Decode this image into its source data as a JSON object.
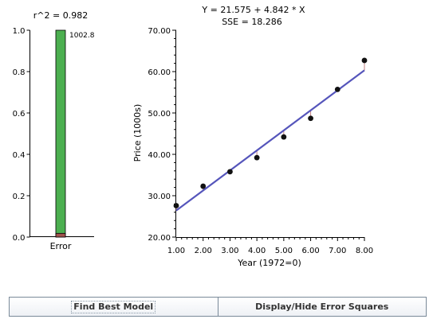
{
  "error_panel": {
    "r2_label": "r^2 = 0.982",
    "bar_label": "1002.8",
    "category_label": "Error",
    "y_ticks": [
      "0.0",
      "0.2",
      "0.4",
      "0.6",
      "0.8",
      "1.0"
    ],
    "fill_fraction": 1.0,
    "error_fraction": 0.018,
    "colors": {
      "fill": "#4caf50",
      "error": "#a0524d"
    }
  },
  "chart_data": {
    "type": "scatter",
    "equation": "Y = 21.575 + 4.842 * X",
    "sse": "SSE = 18.286",
    "xlabel": "Year (1972=0)",
    "ylabel": "Price (1000s)",
    "xlim": [
      1,
      8
    ],
    "ylim": [
      20,
      70
    ],
    "x_ticks": [
      "1.00",
      "2.00",
      "3.00",
      "4.00",
      "5.00",
      "6.00",
      "7.00",
      "8.00"
    ],
    "y_ticks": [
      "20.00",
      "30.00",
      "40.00",
      "50.00",
      "60.00",
      "70.00"
    ],
    "points": [
      {
        "x": 1,
        "y": 27.6
      },
      {
        "x": 2,
        "y": 32.3
      },
      {
        "x": 3,
        "y": 35.8
      },
      {
        "x": 4,
        "y": 39.2
      },
      {
        "x": 5,
        "y": 44.2
      },
      {
        "x": 6,
        "y": 48.7
      },
      {
        "x": 7,
        "y": 55.7
      },
      {
        "x": 8,
        "y": 62.7
      }
    ],
    "fit": {
      "intercept": 21.575,
      "slope": 4.842
    },
    "colors": {
      "line": "#5555bb",
      "points": "#111111",
      "residual": "#c08080"
    }
  },
  "buttons": {
    "find_best_model": "Find Best Model",
    "display_hide_error_squares": "Display/Hide Error Squares"
  }
}
